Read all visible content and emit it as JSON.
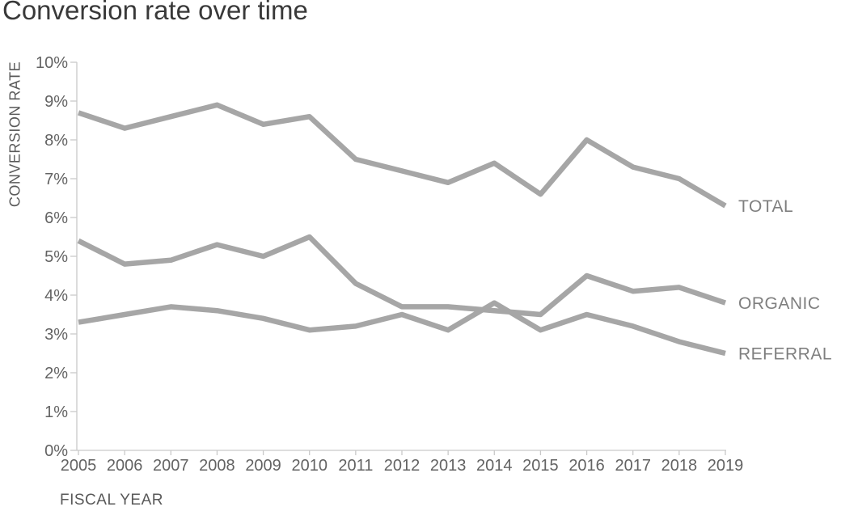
{
  "title": "Conversion rate over time",
  "chart_data": {
    "type": "line",
    "title": "Conversion rate over time",
    "xlabel": "FISCAL YEAR",
    "ylabel": "CONVERSION RATE",
    "x": [
      "2005",
      "2006",
      "2007",
      "2008",
      "2009",
      "2010",
      "2011",
      "2012",
      "2013",
      "2014",
      "2015",
      "2016",
      "2017",
      "2018",
      "2019"
    ],
    "series": [
      {
        "name": "TOTAL",
        "values": [
          8.7,
          8.3,
          8.6,
          8.9,
          8.4,
          8.6,
          7.5,
          7.2,
          6.9,
          7.4,
          6.6,
          8.0,
          7.3,
          7.0,
          6.3
        ]
      },
      {
        "name": "ORGANIC",
        "values": [
          5.4,
          4.8,
          4.9,
          5.3,
          5.0,
          5.5,
          4.3,
          3.7,
          3.7,
          3.6,
          3.5,
          4.5,
          4.1,
          4.2,
          3.8
        ]
      },
      {
        "name": "REFERRAL",
        "values": [
          3.3,
          3.5,
          3.7,
          3.6,
          3.4,
          3.1,
          3.2,
          3.5,
          3.1,
          3.8,
          3.1,
          3.5,
          3.2,
          2.8,
          2.5
        ]
      }
    ],
    "ylim": [
      0,
      10
    ],
    "y_tick_step": 1,
    "y_tick_labels": [
      "0%",
      "1%",
      "2%",
      "3%",
      "4%",
      "5%",
      "6%",
      "7%",
      "8%",
      "9%",
      "10%"
    ],
    "grid": false,
    "legend_position": "right-end-labels"
  },
  "colors": {
    "line": "#a6a6a6",
    "axis": "#c9c9c9",
    "title_text": "#393939",
    "tick_text": "#636363",
    "axis_title_text": "#595959",
    "series_label_text": "#7f7f7f"
  }
}
